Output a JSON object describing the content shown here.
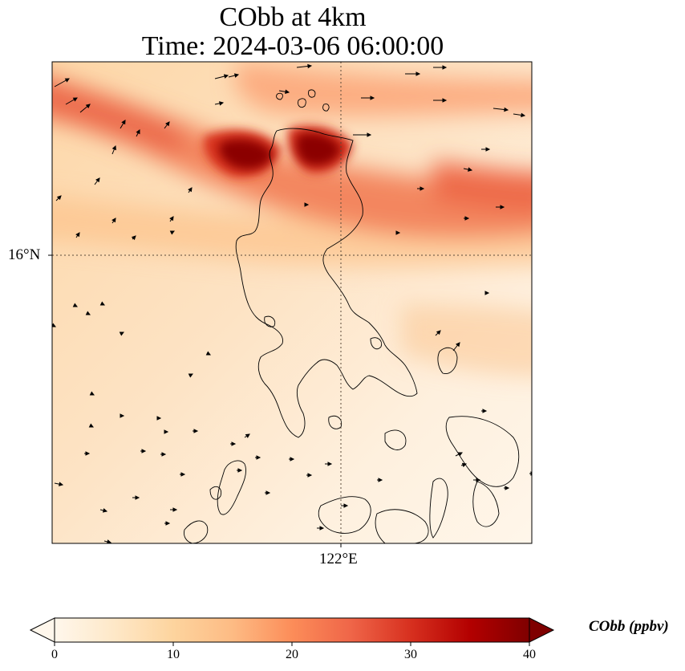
{
  "title": {
    "line1": "CObb at 4km",
    "line2": "Time: 2024-03-06 06:00:00"
  },
  "map": {
    "lat_label": "16°N",
    "lon_label": "122°E",
    "gridline_style": "dotted",
    "field_colormap": "OrRd"
  },
  "colorbar": {
    "label": "CObb (ppbv)",
    "ticks": [
      "0",
      "10",
      "20",
      "30",
      "40"
    ],
    "range": [
      0,
      40
    ],
    "extend": "both",
    "colors": [
      "#fff7ec",
      "#fee8c8",
      "#fdd49e",
      "#fdbb84",
      "#fc8d59",
      "#ef6548",
      "#d7301f",
      "#b30000",
      "#7f0000"
    ]
  },
  "chart_data": {
    "type": "heatmap",
    "variable": "CObb",
    "units": "ppbv",
    "time": "2024-03-06 06:00:00",
    "level": "4km",
    "color_range": [
      0,
      40
    ],
    "features": [
      "CO plume band across northern edge",
      "maximum ~38 ppbv near northern Luzon coast",
      "wind vectors overlay",
      "coastlines of Luzon and surrounding islands"
    ]
  }
}
